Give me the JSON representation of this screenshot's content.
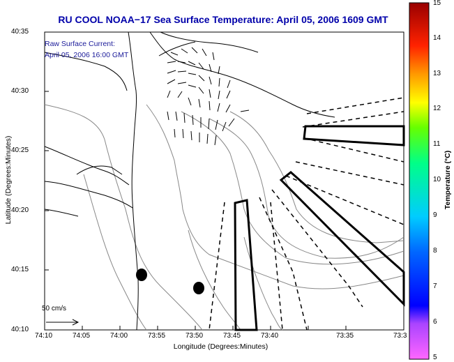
{
  "title": "RU COOL  NOAA−17  Sea Surface Temperature:  April 05, 2006 1609 GMT",
  "overlay": {
    "line1": "Raw Surface Current:",
    "line2": "April 05, 2006 16:00 GMT"
  },
  "axes": {
    "ylabel": "Latitude (Degrees:Minutes)",
    "xlabel": "Longitude (Degrees:Minutes)",
    "yticks": [
      "40:35",
      "40:30",
      "40:25",
      "40:20",
      "40:15",
      "40:10"
    ],
    "xticks": [
      "74:10",
      "74:05",
      "74:00",
      "73:55",
      "73:50",
      "73:45",
      "73:40",
      "73:35",
      "73:3"
    ]
  },
  "colorbar": {
    "label": "Temperature (°C)",
    "ticks": [
      "15",
      "14",
      "13",
      "12",
      "11",
      "10",
      "9",
      "8",
      "7",
      "6",
      "5"
    ],
    "range": [
      5,
      15
    ]
  },
  "scale": {
    "label": "50 cm/s"
  },
  "colors": {
    "title": "#0000aa",
    "contour": "#888888",
    "coast": "#000000"
  }
}
